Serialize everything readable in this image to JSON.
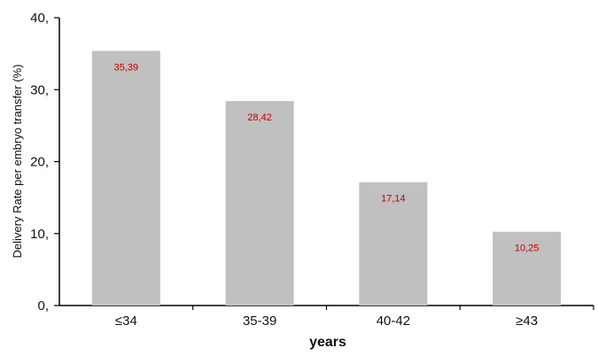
{
  "chart_data": {
    "type": "bar",
    "title": "",
    "xlabel": "years",
    "ylabel": "Delivery Rate per embryo transfer (%)",
    "categories": [
      "≤34",
      "35-39",
      "40-42",
      "≥43"
    ],
    "values": [
      35.39,
      28.42,
      17.14,
      10.25
    ],
    "data_labels": [
      "35,39",
      "28,42",
      "17,14",
      "10,25"
    ],
    "ylim": [
      0,
      40
    ],
    "yticks": [
      0,
      10,
      20,
      30,
      40
    ],
    "ytick_labels": [
      "0,",
      "10,",
      "20,",
      "30,",
      "40,"
    ],
    "grid": false,
    "legend": "none",
    "bar_color": "#c0c0c0",
    "label_color": "#c00000"
  }
}
